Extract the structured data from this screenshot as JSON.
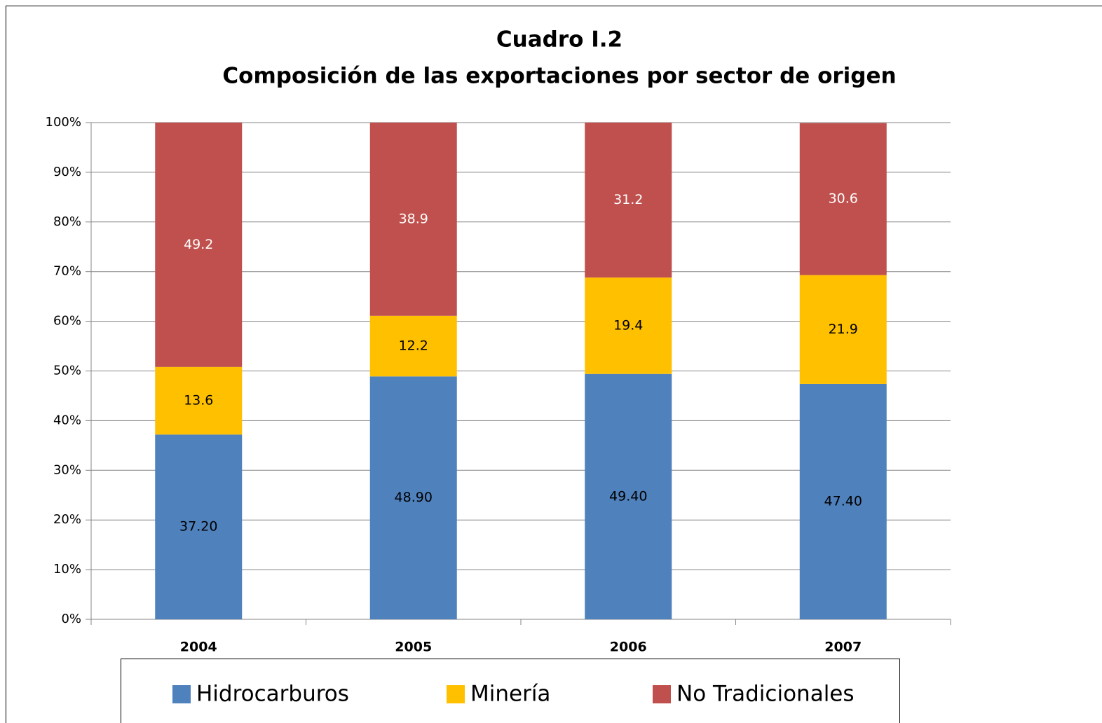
{
  "chart_data": {
    "type": "stacked_bar",
    "title": "Cuadro I.2",
    "subtitle": "Composición de las exportaciones por sector de origen",
    "categories": [
      "2004",
      "2005",
      "2006",
      "2007"
    ],
    "series": [
      {
        "name": "Hidrocarburos",
        "color": "#4f81bd",
        "values": [
          37.2,
          48.9,
          49.4,
          47.4
        ],
        "value_labels": [
          "37.20",
          "48.90",
          "49.40",
          "47.40"
        ]
      },
      {
        "name": "Minería",
        "color": "#ffc000",
        "values": [
          13.6,
          12.2,
          19.4,
          21.9
        ]
      },
      {
        "name": "No Tradicionales",
        "color": "#c0504d",
        "values": [
          49.2,
          38.9,
          31.2,
          30.6
        ]
      }
    ],
    "ylim": [
      0,
      100
    ],
    "yticks": [
      {
        "value": 0,
        "label": "0%"
      },
      {
        "value": 10,
        "label": "10%"
      },
      {
        "value": 20,
        "label": "20%"
      },
      {
        "value": 30,
        "label": "30%"
      },
      {
        "value": 40,
        "label": "40%"
      },
      {
        "value": 50,
        "label": "50%"
      },
      {
        "value": 60,
        "label": "60%"
      },
      {
        "value": 70,
        "label": "70%"
      },
      {
        "value": 80,
        "label": "80%"
      },
      {
        "value": 90,
        "label": "90%"
      },
      {
        "value": 100,
        "label": "100%"
      }
    ],
    "grid": true,
    "legend": "bottom"
  }
}
